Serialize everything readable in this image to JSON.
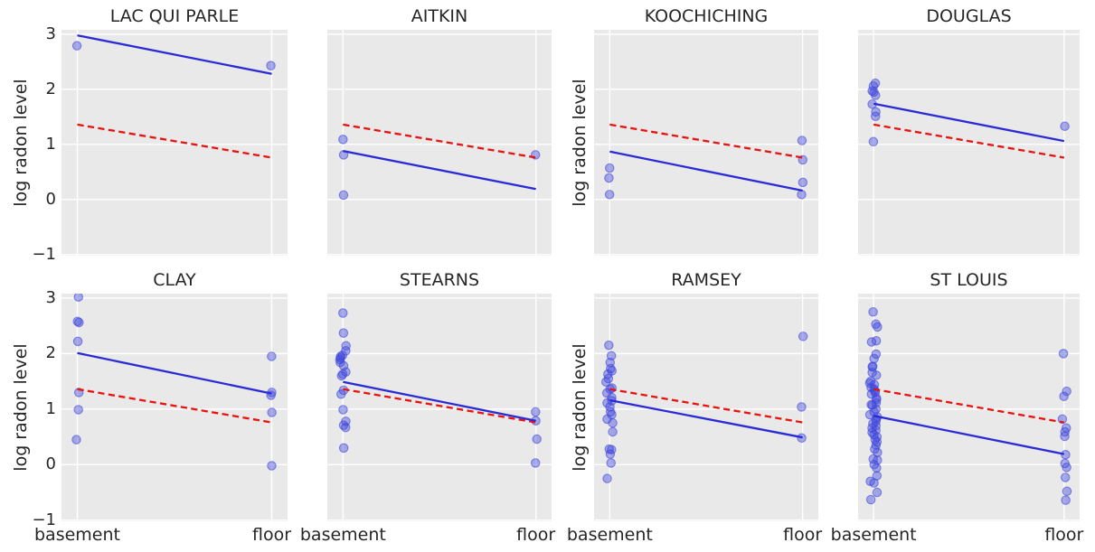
{
  "figure": {
    "ylabel": "log radon level",
    "x_tick_labels": [
      "basement",
      "floor"
    ],
    "y_tick_labels": [
      "3",
      "2",
      "1",
      "0",
      "−1"
    ],
    "colors": {
      "figure_bg": "#ffffff",
      "panel_bg": "#e9e9e9",
      "grid": "#ffffff",
      "fit_line": "#2b2bd5",
      "pooled_line": "#e8120e",
      "point_fill": "rgba(62,70,220,0.42)",
      "point_edge": "rgba(62,70,220,0.60)",
      "text": "#262626"
    }
  },
  "chart_data": {
    "type": "scatter",
    "x_categories": [
      "basement",
      "floor"
    ],
    "ylabel": "log radon level",
    "ylim": [
      -1.02,
      3.08
    ],
    "y_ticks": [
      3,
      2,
      1,
      0,
      -1
    ],
    "grid": true,
    "legend": "none",
    "pooled_line": {
      "style": "dashed",
      "y_basement": 1.36,
      "y_floor": 0.76
    },
    "panels": [
      {
        "title": "LAC QUI PARLE",
        "points_basement": [
          2.79
        ],
        "points_floor": [
          2.43
        ],
        "fit_line": {
          "y_basement": 2.98,
          "y_floor": 2.28
        },
        "show_y_tick_labels": true,
        "show_ylabel": true,
        "show_x_tick_labels": false
      },
      {
        "title": "AITKIN",
        "points_basement": [
          1.09,
          0.81,
          0.08
        ],
        "points_floor": [
          0.81
        ],
        "fit_line": {
          "y_basement": 0.88,
          "y_floor": 0.19
        },
        "show_y_tick_labels": false,
        "show_ylabel": false,
        "show_x_tick_labels": false
      },
      {
        "title": "KOOCHICHING",
        "points_basement": [
          0.57,
          0.39,
          0.09
        ],
        "points_floor": [
          1.07,
          0.72,
          0.31,
          0.09
        ],
        "fit_line": {
          "y_basement": 0.87,
          "y_floor": 0.16
        },
        "show_y_tick_labels": false,
        "show_ylabel": true,
        "show_x_tick_labels": false
      },
      {
        "title": "DOUGLAS",
        "points_basement": [
          2.11,
          2.06,
          1.97,
          1.95,
          1.89,
          1.73,
          1.59,
          1.51,
          1.05
        ],
        "points_floor": [
          1.33
        ],
        "fit_line": {
          "y_basement": 1.74,
          "y_floor": 1.06
        },
        "show_y_tick_labels": false,
        "show_ylabel": false,
        "show_x_tick_labels": false
      },
      {
        "title": "CLAY",
        "points_basement": [
          3.02,
          2.58,
          2.56,
          2.22,
          1.3,
          0.99,
          0.45
        ],
        "points_floor": [
          1.95,
          1.3,
          1.25,
          0.94,
          -0.02
        ],
        "fit_line": {
          "y_basement": 2.01,
          "y_floor": 1.28
        },
        "show_y_tick_labels": true,
        "show_ylabel": true,
        "show_x_tick_labels": true
      },
      {
        "title": "STEARNS",
        "points_basement": [
          2.73,
          2.37,
          2.14,
          2.05,
          1.97,
          1.95,
          1.92,
          1.89,
          1.84,
          1.78,
          1.67,
          1.63,
          1.6,
          1.34,
          1.27,
          0.99,
          0.78,
          0.71,
          0.67,
          0.3
        ],
        "points_floor": [
          0.95,
          0.79,
          0.46,
          0.03
        ],
        "fit_line": {
          "y_basement": 1.49,
          "y_floor": 0.79
        },
        "show_y_tick_labels": false,
        "show_ylabel": false,
        "show_x_tick_labels": true
      },
      {
        "title": "RAMSEY",
        "points_basement": [
          2.15,
          1.96,
          1.84,
          1.73,
          1.69,
          1.63,
          1.55,
          1.49,
          1.38,
          1.36,
          1.29,
          1.21,
          1.15,
          1.11,
          1.04,
          0.95,
          0.9,
          0.82,
          0.75,
          0.59,
          0.28,
          0.27,
          0.19,
          0.03,
          -0.25
        ],
        "points_floor": [
          2.31,
          1.04,
          0.48
        ],
        "fit_line": {
          "y_basement": 1.16,
          "y_floor": 0.49
        },
        "show_y_tick_labels": false,
        "show_ylabel": true,
        "show_x_tick_labels": true
      },
      {
        "title": "ST LOUIS",
        "points_basement": [
          2.75,
          2.53,
          2.48,
          2.23,
          2.21,
          1.99,
          1.91,
          1.77,
          1.76,
          1.66,
          1.61,
          1.5,
          1.47,
          1.44,
          1.39,
          1.36,
          1.33,
          1.3,
          1.27,
          1.2,
          1.17,
          1.11,
          1.08,
          1.07,
          1.0,
          0.95,
          0.9,
          0.86,
          0.82,
          0.78,
          0.74,
          0.7,
          0.66,
          0.62,
          0.58,
          0.54,
          0.5,
          0.45,
          0.41,
          0.35,
          0.28,
          0.22,
          0.1,
          0.08,
          0.0,
          -0.06,
          -0.2,
          -0.3,
          -0.33,
          -0.5,
          -0.63
        ],
        "points_floor": [
          2.0,
          1.32,
          1.23,
          0.82,
          0.66,
          0.59,
          0.51,
          0.18,
          0.02,
          -0.05,
          -0.23,
          -0.48,
          -0.64
        ],
        "fit_line": {
          "y_basement": 0.88,
          "y_floor": 0.19
        },
        "show_y_tick_labels": false,
        "show_ylabel": false,
        "show_x_tick_labels": true
      }
    ]
  }
}
